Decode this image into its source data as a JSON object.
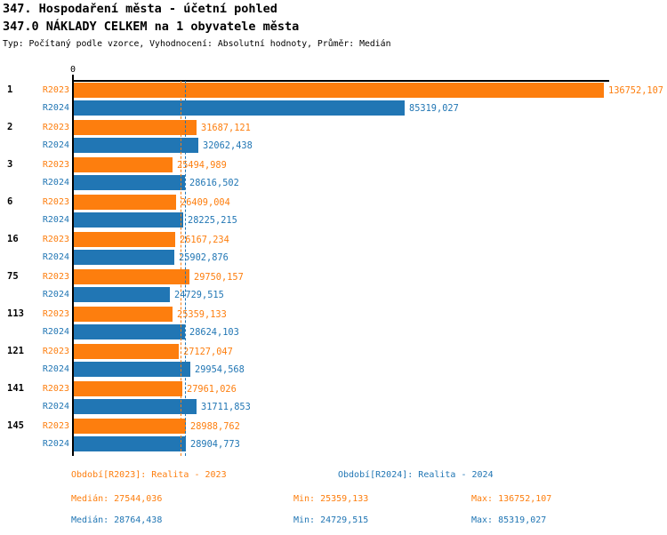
{
  "header": {
    "title": "347. Hospodaření města - účetní pohled",
    "subtitle": "347.0 NÁKLADY CELKEM na 1 obyvatele města",
    "meta": "Typ: Počítaný podle vzorce, Vyhodnocení: Absolutní hodnoty, Průměr: Medián"
  },
  "colors": {
    "r2023_orange": "#fd7e0e",
    "r2024_blue": "#2176b4",
    "axis_black": "#000000"
  },
  "chart_data": {
    "type": "bar",
    "orientation": "horizontal",
    "title": "347.0 NÁKLADY CELKEM na 1 obyvatele města",
    "xlabel": "",
    "ylabel": "",
    "axis_origin_label": "0",
    "grid": false,
    "value_labels": true,
    "decimal_separator": ",",
    "xlim": [
      0,
      136752.107
    ],
    "categories": [
      "1",
      "2",
      "3",
      "6",
      "16",
      "75",
      "113",
      "121",
      "141",
      "145"
    ],
    "series": [
      {
        "name": "R2023",
        "color": "#fd7e0e",
        "values": [
          136752.107,
          31687.121,
          25494.989,
          26409.004,
          26167.234,
          29750.157,
          25359.133,
          27127.047,
          27961.026,
          28988.762
        ]
      },
      {
        "name": "R2024",
        "color": "#2176b4",
        "values": [
          85319.027,
          32062.438,
          28616.502,
          28225.215,
          25902.876,
          24729.515,
          28624.103,
          29954.568,
          31711.853,
          28904.773
        ]
      }
    ],
    "median_lines": [
      {
        "series": "R2023",
        "value": 27544.036,
        "color": "#fd7e0e"
      },
      {
        "series": "R2024",
        "value": 28764.438,
        "color": "#2176b4"
      }
    ],
    "summary": {
      "R2023": {
        "median": 27544.036,
        "min": 25359.133,
        "max": 136752.107
      },
      "R2024": {
        "median": 28764.438,
        "min": 24729.515,
        "max": 85319.027
      }
    }
  },
  "footer": {
    "r2023": {
      "period": "Období[R2023]: Realita - 2023",
      "median": "Medián: 27544,036",
      "min": "Min: 25359,133",
      "max": "Max: 136752,107"
    },
    "r2024": {
      "period": "Období[R2024]: Realita - 2024",
      "median": "Medián: 28764,438",
      "min": "Min: 24729,515",
      "max": "Max: 85319,027"
    }
  }
}
